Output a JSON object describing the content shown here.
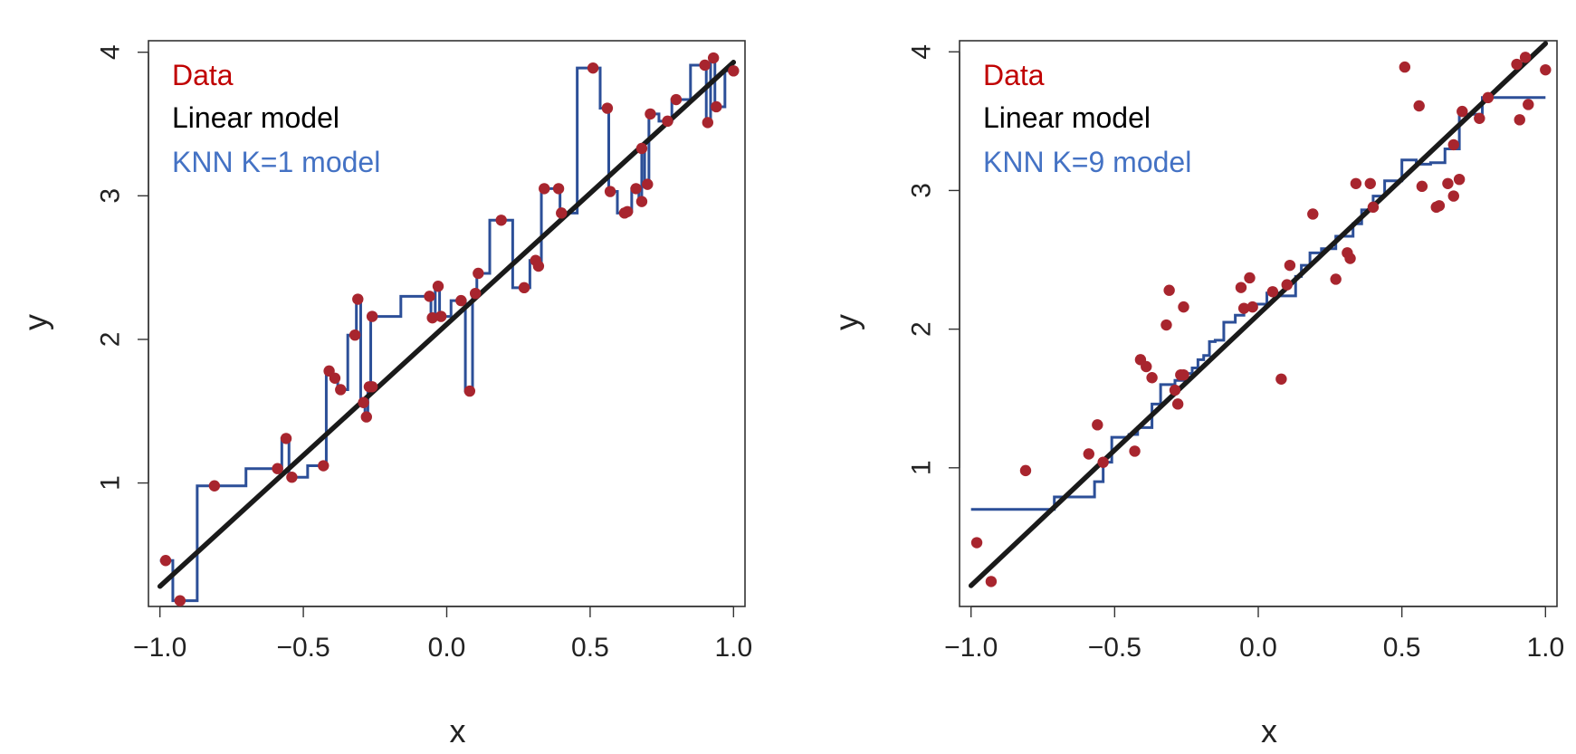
{
  "colors": {
    "data": "#A8252E",
    "linear": "#1A1A1A",
    "knn": "#2C4F98",
    "legend_knn": "#4472C4",
    "legend_data": "#C00000"
  },
  "chart_data": [
    {
      "type": "scatter",
      "xlabel": "x",
      "ylabel": "y",
      "xlim": [
        -1.04,
        1.04
      ],
      "ylim": [
        0.14,
        4.08
      ],
      "xticks": [
        -1.0,
        -0.5,
        0.0,
        0.5,
        1.0
      ],
      "xtick_labels": [
        "−1.0",
        "−0.5",
        "0.0",
        "0.5",
        "1.0"
      ],
      "yticks": [
        1,
        2,
        3,
        4
      ],
      "ytick_labels": [
        "1",
        "2",
        "3",
        "4"
      ],
      "grid": false,
      "legend_position": "top-left",
      "legend": [
        "Data",
        "Linear model",
        "KNN K=1 model"
      ],
      "series": [
        {
          "name": "Data",
          "type": "scatter",
          "x": [
            -0.98,
            -0.93,
            -0.81,
            -0.59,
            -0.56,
            -0.54,
            -0.43,
            -0.41,
            -0.39,
            -0.37,
            -0.32,
            -0.31,
            -0.29,
            -0.28,
            -0.27,
            -0.26,
            -0.26,
            -0.06,
            -0.05,
            -0.03,
            -0.02,
            0.05,
            0.08,
            0.1,
            0.11,
            0.19,
            0.27,
            0.31,
            0.32,
            0.34,
            0.39,
            0.4,
            0.51,
            0.56,
            0.57,
            0.62,
            0.63,
            0.66,
            0.68,
            0.68,
            0.7,
            0.71,
            0.77,
            0.8,
            0.9,
            0.91,
            0.93,
            0.94,
            1.0
          ],
          "y": [
            0.46,
            0.18,
            0.98,
            1.1,
            1.31,
            1.04,
            1.12,
            1.78,
            1.73,
            1.65,
            2.03,
            2.28,
            1.56,
            1.46,
            1.67,
            1.67,
            2.16,
            2.3,
            2.15,
            2.37,
            2.16,
            2.27,
            1.64,
            2.32,
            2.46,
            2.83,
            2.36,
            2.55,
            2.51,
            3.05,
            3.05,
            2.88,
            3.89,
            3.61,
            3.03,
            2.88,
            2.89,
            3.05,
            2.96,
            3.33,
            3.08,
            3.57,
            3.52,
            3.67,
            3.91,
            3.51,
            3.96,
            3.62,
            3.87
          ]
        },
        {
          "name": "Linear model",
          "type": "line",
          "x": [
            -1.0,
            1.0
          ],
          "y": [
            0.28,
            3.93
          ]
        },
        {
          "name": "KNN K=1 model",
          "type": "step",
          "x": [
            -1.0,
            -0.955,
            -0.87,
            -0.7,
            -0.575,
            -0.55,
            -0.485,
            -0.42,
            -0.4,
            -0.38,
            -0.345,
            -0.315,
            -0.3,
            -0.285,
            -0.275,
            -0.265,
            -0.16,
            -0.055,
            -0.04,
            -0.025,
            0.015,
            0.065,
            0.09,
            0.105,
            0.15,
            0.23,
            0.29,
            0.315,
            0.33,
            0.365,
            0.395,
            0.455,
            0.535,
            0.565,
            0.595,
            0.625,
            0.645,
            0.67,
            0.68,
            0.69,
            0.705,
            0.74,
            0.785,
            0.85,
            0.905,
            0.92,
            0.935,
            0.97,
            1.0
          ],
          "y": [
            0.46,
            0.18,
            0.98,
            1.1,
            1.31,
            1.04,
            1.12,
            1.78,
            1.73,
            1.65,
            2.03,
            2.28,
            1.56,
            1.46,
            1.67,
            2.16,
            2.3,
            2.15,
            2.37,
            2.16,
            2.27,
            1.64,
            2.32,
            2.46,
            2.83,
            2.36,
            2.55,
            2.51,
            3.05,
            3.05,
            2.88,
            3.89,
            3.61,
            3.03,
            2.88,
            2.89,
            3.05,
            2.96,
            3.33,
            3.08,
            3.57,
            3.52,
            3.67,
            3.91,
            3.51,
            3.96,
            3.62,
            3.87,
            3.87
          ]
        }
      ]
    },
    {
      "type": "scatter",
      "xlabel": "x",
      "ylabel": "y",
      "xlim": [
        -1.04,
        1.04
      ],
      "ylim": [
        0.0,
        4.08
      ],
      "xticks": [
        -1.0,
        -0.5,
        0.0,
        0.5,
        1.0
      ],
      "xtick_labels": [
        "−1.0",
        "−0.5",
        "0.0",
        "0.5",
        "1.0"
      ],
      "yticks": [
        1,
        2,
        3,
        4
      ],
      "ytick_labels": [
        "1",
        "2",
        "3",
        "4"
      ],
      "grid": false,
      "legend_position": "top-left",
      "legend": [
        "Data",
        "Linear model",
        "KNN K=9 model"
      ],
      "series": [
        {
          "name": "Data",
          "type": "scatter",
          "x": [
            -0.98,
            -0.93,
            -0.81,
            -0.59,
            -0.56,
            -0.54,
            -0.43,
            -0.41,
            -0.39,
            -0.37,
            -0.32,
            -0.31,
            -0.29,
            -0.28,
            -0.27,
            -0.26,
            -0.26,
            -0.06,
            -0.05,
            -0.03,
            -0.02,
            0.05,
            0.08,
            0.1,
            0.11,
            0.19,
            0.27,
            0.31,
            0.32,
            0.34,
            0.39,
            0.4,
            0.51,
            0.56,
            0.57,
            0.62,
            0.63,
            0.66,
            0.68,
            0.68,
            0.7,
            0.71,
            0.77,
            0.8,
            0.9,
            0.91,
            0.93,
            0.94,
            1.0
          ],
          "y": [
            0.46,
            0.18,
            0.98,
            1.1,
            1.31,
            1.04,
            1.12,
            1.78,
            1.73,
            1.65,
            2.03,
            2.28,
            1.56,
            1.46,
            1.67,
            1.67,
            2.16,
            2.3,
            2.15,
            2.37,
            2.16,
            2.27,
            1.64,
            2.32,
            2.46,
            2.83,
            2.36,
            2.55,
            2.51,
            3.05,
            3.05,
            2.88,
            3.89,
            3.61,
            3.03,
            2.88,
            2.89,
            3.05,
            2.96,
            3.33,
            3.08,
            3.57,
            3.52,
            3.67,
            3.91,
            3.51,
            3.96,
            3.62,
            3.87
          ]
        },
        {
          "name": "Linear model",
          "type": "line",
          "x": [
            -1.0,
            1.0
          ],
          "y": [
            0.15,
            4.06
          ]
        },
        {
          "name": "KNN K=9 model",
          "type": "step",
          "x": [
            -1.0,
            -0.71,
            -0.57,
            -0.54,
            -0.51,
            -0.45,
            -0.42,
            -0.37,
            -0.34,
            -0.29,
            -0.25,
            -0.23,
            -0.21,
            -0.19,
            -0.17,
            -0.15,
            -0.12,
            -0.08,
            -0.05,
            -0.02,
            0.03,
            0.07,
            0.13,
            0.15,
            0.18,
            0.22,
            0.27,
            0.33,
            0.36,
            0.4,
            0.44,
            0.5,
            0.55,
            0.6,
            0.65,
            0.7,
            0.78,
            1.0
          ],
          "y": [
            0.7,
            0.79,
            0.9,
            1.04,
            1.22,
            1.24,
            1.29,
            1.46,
            1.6,
            1.63,
            1.68,
            1.72,
            1.78,
            1.81,
            1.91,
            1.92,
            2.05,
            2.1,
            2.14,
            2.18,
            2.26,
            2.24,
            2.38,
            2.46,
            2.55,
            2.58,
            2.67,
            2.76,
            2.86,
            2.96,
            3.07,
            3.22,
            3.19,
            3.2,
            3.3,
            3.55,
            3.67,
            3.67
          ]
        }
      ]
    }
  ]
}
